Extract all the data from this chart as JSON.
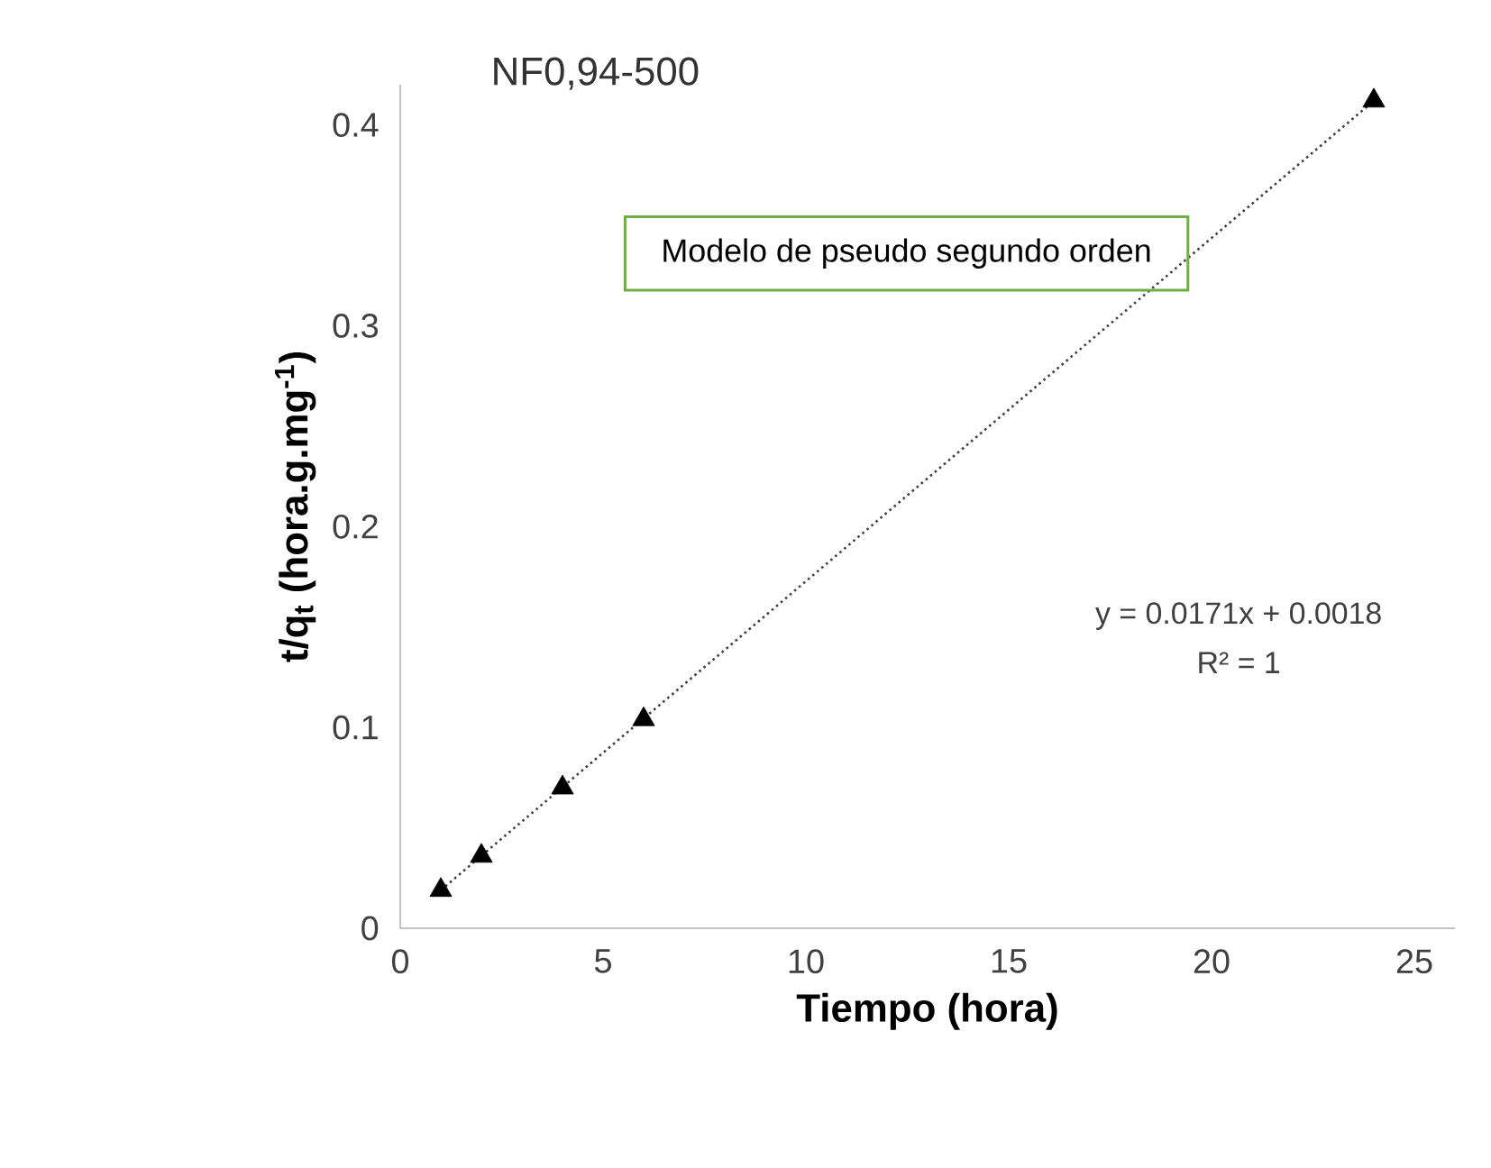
{
  "chart_data": {
    "type": "scatter",
    "title": "NF0,94-500",
    "xlabel": "Tiempo (hora)",
    "ylabel": "t/q$_{t}$ (hora.g.mg$^{-1}$)",
    "series": [
      {
        "color": "#000000",
        "marker": "triangle",
        "x": [
          1,
          2,
          4,
          6,
          24
        ],
        "values": [
          0.019,
          0.036,
          0.07,
          0.104,
          0.412
        ]
      },
      {
        "type": "line",
        "color": "#404040",
        "line_style": "dotted",
        "marker": "none",
        "x": [
          1,
          24
        ],
        "values": [
          0.019,
          0.412
        ]
      }
    ],
    "xlim": [
      0,
      26
    ],
    "ylim": [
      0,
      0.42
    ],
    "xticks": [
      0,
      5,
      10,
      15,
      20,
      25
    ],
    "yticks": [
      0,
      0.1,
      0.2,
      0.3,
      0.4
    ],
    "grid": false,
    "annotations": [
      "Modelo de pseudo segundo orden",
      "y = 0.0171x + 0.0018",
      "R² = 1"
    ]
  }
}
